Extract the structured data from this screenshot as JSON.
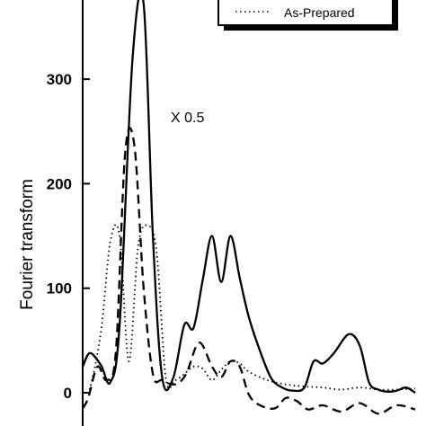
{
  "chart_data": {
    "type": "line",
    "ylabel": "Fourier transform",
    "xlabel": "",
    "title": "",
    "ylim": [
      -20,
      375
    ],
    "yticks": [
      0,
      100,
      200,
      300
    ],
    "annotation": "X 0.5",
    "legend": {
      "placement": "top-right",
      "visible_entries": [
        "As-Prepared"
      ]
    },
    "series": [
      {
        "style": "solid",
        "color": "#000000",
        "x": [
          0,
          0.4,
          1,
          1.5,
          2,
          2.7,
          3.3,
          3.8,
          4.3,
          4.9,
          5.5,
          6,
          6.5,
          7,
          7.5,
          8,
          8.5,
          9,
          9.6,
          10.2,
          10.8,
          11.4,
          12,
          12.5,
          13,
          13.6,
          14.4,
          15,
          15.5,
          16,
          16.5,
          17,
          17.5,
          18
        ],
        "values": [
          25,
          38,
          26,
          10,
          65,
          320,
          372,
          150,
          15,
          14,
          65,
          62,
          108,
          150,
          106,
          150,
          110,
          72,
          40,
          14,
          5,
          2,
          5,
          30,
          28,
          38,
          56,
          45,
          10,
          3,
          1,
          2,
          5,
          0
        ]
      },
      {
        "name": "As-Prepared",
        "style": "dotted",
        "color": "#000000",
        "x": [
          0,
          0.4,
          1,
          1.5,
          2,
          2.5,
          3,
          3.5,
          4,
          4.5,
          5,
          5.5,
          6,
          6.5,
          7,
          7.5,
          8,
          8.5,
          9,
          10,
          11,
          12,
          13,
          14,
          15,
          16,
          17,
          18
        ],
        "values": [
          0,
          5,
          60,
          145,
          150,
          30,
          140,
          160,
          135,
          14,
          12,
          18,
          25,
          23,
          12,
          22,
          30,
          28,
          20,
          12,
          8,
          6,
          5,
          3,
          5,
          3,
          3,
          4
        ]
      },
      {
        "style": "dashed",
        "color": "#000000",
        "x": [
          0,
          0.3,
          0.8,
          1.3,
          1.8,
          2.3,
          2.8,
          3.3,
          3.8,
          4.3,
          5,
          5.6,
          6.3,
          7,
          7.5,
          8,
          8.5,
          9,
          9.6,
          10.4,
          11,
          11.6,
          12.2,
          13,
          14,
          15,
          16,
          17,
          18
        ],
        "values": [
          -15,
          -5,
          25,
          12,
          40,
          230,
          236,
          100,
          18,
          12,
          8,
          18,
          48,
          25,
          15,
          30,
          25,
          -2,
          -12,
          -15,
          -5,
          -8,
          -16,
          -12,
          -18,
          -10,
          -20,
          -12,
          -16
        ]
      }
    ]
  }
}
